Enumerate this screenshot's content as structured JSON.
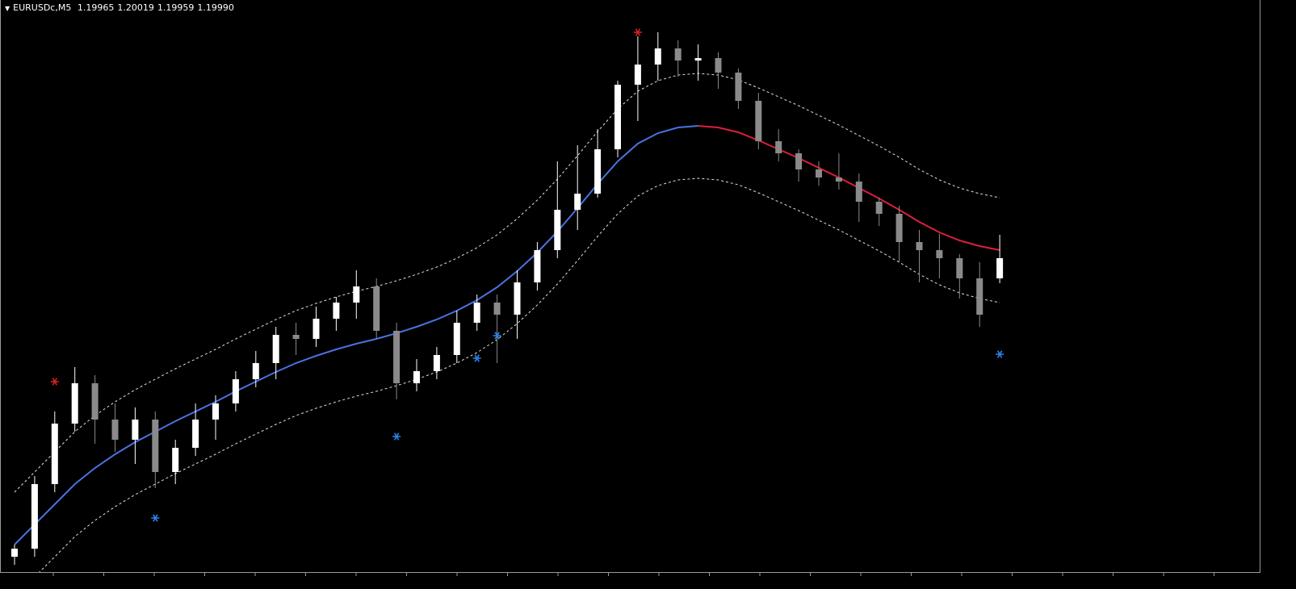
{
  "header": {
    "symbol": "EURUSDc,M5",
    "quote": [
      "1.19965",
      "1.20019",
      "1.19959",
      "1.19990"
    ]
  },
  "chart_data": {
    "type": "candlestick",
    "ylim": [
      1.196,
      1.203
    ],
    "up_color": "#ffffff",
    "down_color": "#8a8a8a",
    "open": [
      1.1962,
      1.1963,
      1.1971,
      1.19785,
      1.19835,
      1.1979,
      1.19765,
      1.1979,
      1.19725,
      1.19755,
      1.1979,
      1.1981,
      1.1984,
      1.1986,
      1.19895,
      1.1989,
      1.19915,
      1.19935,
      1.19955,
      1.199,
      1.19835,
      1.1985,
      1.1987,
      1.1991,
      1.19935,
      1.1992,
      1.1996,
      1.2,
      1.2005,
      1.2007,
      1.20125,
      1.20205,
      1.2023,
      1.2025,
      1.20235,
      1.20238,
      1.2022,
      1.20185,
      1.20135,
      1.2012,
      1.201,
      1.2009,
      1.20085,
      1.2006,
      1.20045,
      1.2001,
      1.2,
      1.1999,
      1.19965,
      1.19965
    ],
    "high": [
      1.19635,
      1.1972,
      1.198,
      1.19855,
      1.19845,
      1.1981,
      1.19805,
      1.198,
      1.19765,
      1.1981,
      1.1982,
      1.1985,
      1.19875,
      1.19905,
      1.1991,
      1.1993,
      1.19942,
      1.19975,
      1.19965,
      1.1991,
      1.19865,
      1.1988,
      1.19925,
      1.19945,
      1.19945,
      1.19975,
      1.2001,
      1.2011,
      1.2013,
      1.2015,
      1.2021,
      1.20265,
      1.2027,
      1.2026,
      1.20255,
      1.20245,
      1.20225,
      1.20195,
      1.2015,
      1.20125,
      1.2011,
      1.2012,
      1.20095,
      1.20065,
      1.20055,
      1.20025,
      1.2002,
      1.19995,
      1.19985,
      1.20019
    ],
    "low": [
      1.1961,
      1.1962,
      1.197,
      1.19775,
      1.1976,
      1.1975,
      1.19735,
      1.19705,
      1.1971,
      1.19745,
      1.19765,
      1.198,
      1.1983,
      1.1984,
      1.1987,
      1.1988,
      1.199,
      1.19915,
      1.1989,
      1.19815,
      1.19825,
      1.1984,
      1.1986,
      1.199,
      1.1986,
      1.1989,
      1.1995,
      1.1999,
      1.20025,
      1.20065,
      1.20115,
      1.2016,
      1.2021,
      1.20215,
      1.2021,
      1.202,
      1.20175,
      1.20125,
      1.2011,
      1.20085,
      1.2008,
      1.20075,
      1.20035,
      1.2003,
      1.19985,
      1.1996,
      1.19965,
      1.1994,
      1.19905,
      1.19959
    ],
    "close": [
      1.1963,
      1.1971,
      1.19785,
      1.19835,
      1.1979,
      1.19765,
      1.1979,
      1.19725,
      1.19755,
      1.1979,
      1.1981,
      1.1984,
      1.1986,
      1.19895,
      1.1989,
      1.19915,
      1.19935,
      1.19955,
      1.199,
      1.19835,
      1.1985,
      1.1987,
      1.1991,
      1.19935,
      1.1992,
      1.1996,
      1.2,
      1.2005,
      1.2007,
      1.20125,
      1.20205,
      1.2023,
      1.2025,
      1.20235,
      1.20238,
      1.2022,
      1.20185,
      1.20135,
      1.2012,
      1.201,
      1.2009,
      1.20085,
      1.2006,
      1.20045,
      1.2001,
      1.2,
      1.1999,
      1.19965,
      1.1992,
      1.1999
    ],
    "lines": [
      {
        "color": "#4a72e0",
        "values": [
          1.19635,
          1.1966,
          1.19685,
          1.1971,
          1.1973,
          1.19747,
          1.19762,
          1.19775,
          1.19788,
          1.198,
          1.19812,
          1.19825,
          1.19837,
          1.19849,
          1.1986,
          1.19869,
          1.19877,
          1.19884,
          1.1989,
          1.19897,
          1.19905,
          1.19914,
          1.19925,
          1.19938,
          1.19954,
          1.19974,
          1.19997,
          1.20023,
          1.20052,
          1.20082,
          1.2011,
          1.20132,
          1.20145,
          1.20152,
          1.20154,
          null,
          null,
          null,
          null,
          null,
          null,
          null,
          null,
          null,
          null,
          null,
          null,
          null,
          null,
          null
        ]
      },
      {
        "color": "#dc1e3c",
        "values": [
          null,
          null,
          null,
          null,
          null,
          null,
          null,
          null,
          null,
          null,
          null,
          null,
          null,
          null,
          null,
          null,
          null,
          null,
          null,
          null,
          null,
          null,
          null,
          null,
          null,
          null,
          null,
          null,
          null,
          null,
          null,
          null,
          null,
          null,
          1.20154,
          1.20152,
          1.20146,
          1.20136,
          1.20125,
          1.20114,
          1.20102,
          1.2009,
          1.20077,
          1.20064,
          1.2005,
          1.20035,
          1.20022,
          1.20012,
          1.20005,
          1.2
        ]
      }
    ],
    "bands": {
      "color": "#e0e0e0",
      "upper": [
        1.197,
        1.19725,
        1.1975,
        1.19775,
        1.19795,
        1.19812,
        1.19827,
        1.1984,
        1.19853,
        1.19865,
        1.19877,
        1.1989,
        1.19902,
        1.19914,
        1.19925,
        1.19934,
        1.19942,
        1.19949,
        1.19955,
        1.19962,
        1.1997,
        1.19979,
        1.1999,
        1.20003,
        1.20019,
        1.20039,
        1.20062,
        1.20088,
        1.20117,
        1.20147,
        1.20175,
        1.20197,
        1.2021,
        1.20217,
        1.20219,
        1.20217,
        1.20211,
        1.20201,
        1.2019,
        1.20179,
        1.20167,
        1.20155,
        1.20142,
        1.20129,
        1.20115,
        1.201,
        1.20087,
        1.20077,
        1.2007,
        1.20065
      ],
      "lower": [
        1.1957,
        1.19595,
        1.1962,
        1.19645,
        1.19665,
        1.19682,
        1.19697,
        1.1971,
        1.19723,
        1.19735,
        1.19747,
        1.1976,
        1.19772,
        1.19784,
        1.19795,
        1.19804,
        1.19812,
        1.19819,
        1.19825,
        1.19832,
        1.1984,
        1.19849,
        1.1986,
        1.19873,
        1.19889,
        1.19909,
        1.19932,
        1.19958,
        1.19987,
        1.20017,
        1.20045,
        1.20067,
        1.2008,
        1.20087,
        1.20089,
        1.20087,
        1.20081,
        1.20071,
        1.2006,
        1.20049,
        1.20037,
        1.20025,
        1.20012,
        1.19999,
        1.19985,
        1.1997,
        1.19957,
        1.19947,
        1.1994,
        1.19935
      ]
    },
    "signals": [
      {
        "color": "#d42020",
        "values": [
          null,
          null,
          1.19837,
          null,
          null,
          null,
          null,
          null,
          null,
          null,
          null,
          null,
          null,
          null,
          null,
          null,
          null,
          null,
          null,
          null,
          null,
          null,
          null,
          null,
          null,
          null,
          null,
          null,
          null,
          null,
          null,
          1.2027,
          null,
          null,
          null,
          null,
          null,
          null,
          null,
          null,
          null,
          null,
          null,
          null,
          null,
          null,
          null,
          null,
          null,
          null
        ]
      },
      {
        "color": "#2a80e8",
        "values": [
          null,
          null,
          null,
          null,
          null,
          null,
          null,
          1.19668,
          null,
          null,
          null,
          null,
          null,
          null,
          null,
          null,
          null,
          null,
          null,
          1.19769,
          null,
          null,
          null,
          1.19866,
          1.19894,
          null,
          null,
          null,
          null,
          null,
          null,
          null,
          null,
          null,
          null,
          null,
          null,
          null,
          null,
          null,
          null,
          null,
          null,
          null,
          null,
          null,
          null,
          null,
          null,
          1.19871
        ]
      }
    ]
  }
}
